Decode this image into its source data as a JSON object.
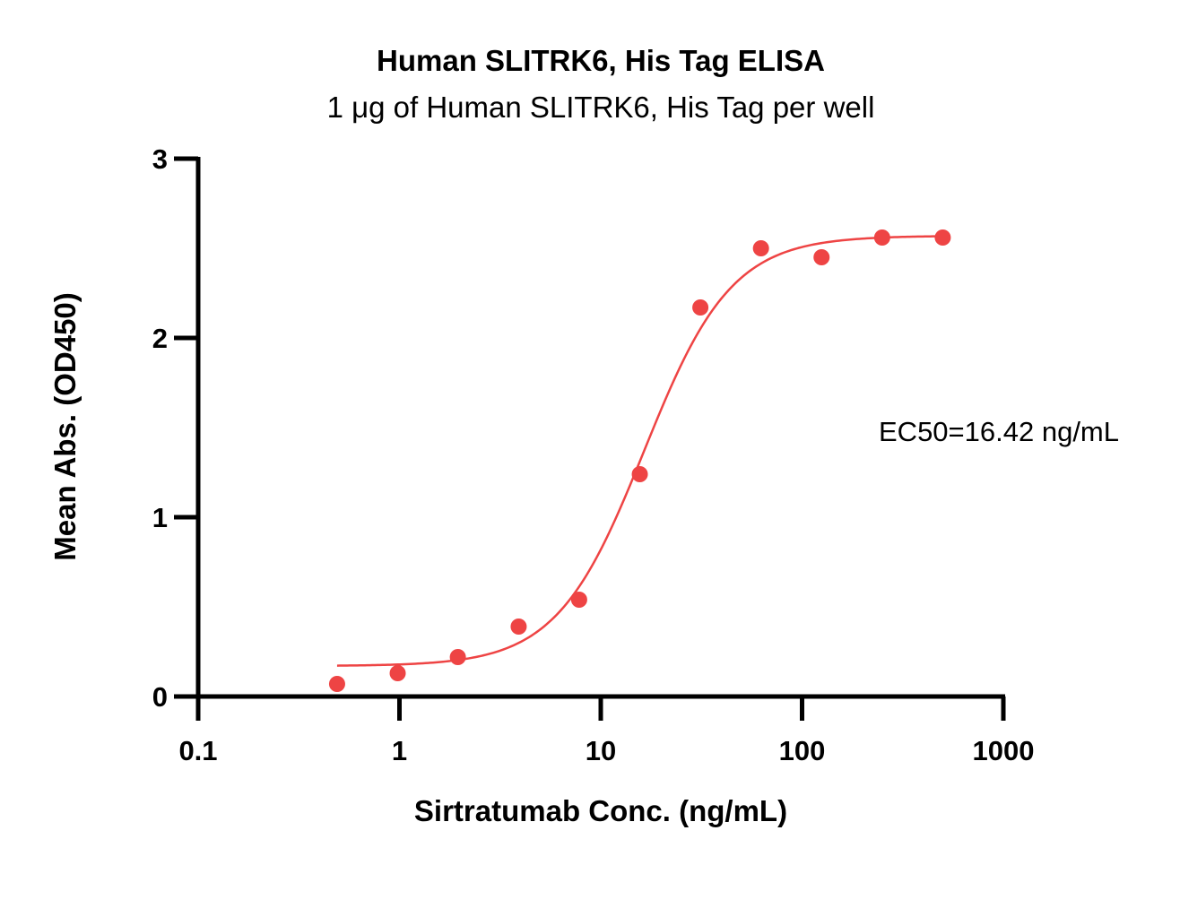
{
  "chart_data": {
    "type": "scatter",
    "title": "Human SLITRK6, His Tag ELISA",
    "subtitle": "1 μg of Human SLITRK6, His Tag per well",
    "xlabel": "Sirtratumab Conc. (ng/mL)",
    "ylabel": "Mean Abs. (OD450)",
    "x_scale": "log",
    "xlim": [
      0.1,
      1000
    ],
    "ylim": [
      0,
      3
    ],
    "x_ticks": [
      0.1,
      1,
      10,
      100,
      1000
    ],
    "x_tick_labels": [
      "0.1",
      "1",
      "10",
      "100",
      "1000"
    ],
    "y_ticks": [
      0,
      1,
      2,
      3
    ],
    "y_tick_labels": [
      "0",
      "1",
      "2",
      "3"
    ],
    "grid": false,
    "color": "#ee4444",
    "annotation": "EC50=16.42 ng/mL",
    "points": [
      {
        "x": 0.49,
        "y": 0.07
      },
      {
        "x": 0.98,
        "y": 0.13
      },
      {
        "x": 1.95,
        "y": 0.22
      },
      {
        "x": 3.91,
        "y": 0.39
      },
      {
        "x": 7.81,
        "y": 0.54
      },
      {
        "x": 15.63,
        "y": 1.24
      },
      {
        "x": 31.25,
        "y": 2.17
      },
      {
        "x": 62.5,
        "y": 2.5
      },
      {
        "x": 125,
        "y": 2.45
      },
      {
        "x": 250,
        "y": 2.56
      },
      {
        "x": 500,
        "y": 2.56
      }
    ],
    "fit": {
      "model": "4PL",
      "bottom": 0.17,
      "top": 2.57,
      "ec50": 16.42,
      "hill": 2.0,
      "x_range": [
        0.49,
        500
      ]
    }
  }
}
